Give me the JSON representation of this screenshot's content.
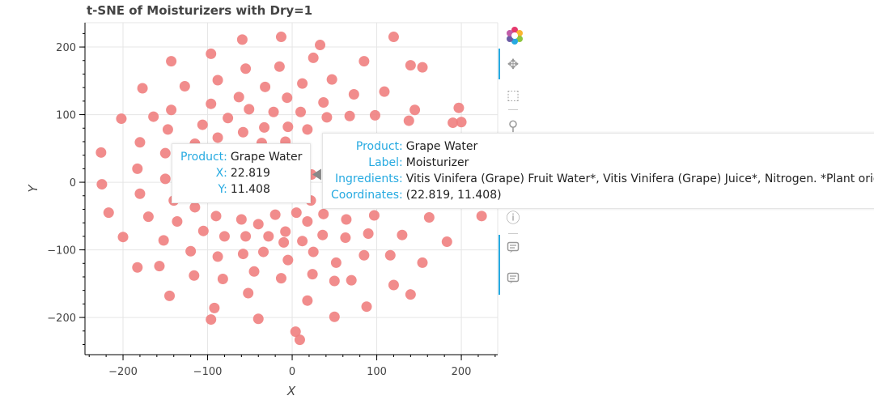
{
  "title": "t-SNE of Moisturizers with Dry=1",
  "chart_data": {
    "type": "scatter",
    "title": "t-SNE of Moisturizers with Dry=1",
    "xlabel": "X",
    "ylabel": "Y",
    "xlim": [
      -245,
      243
    ],
    "ylim": [
      -255,
      236
    ],
    "xticks": [
      -200,
      -100,
      0,
      100,
      200
    ],
    "yticks": [
      -200,
      -100,
      0,
      100,
      200
    ],
    "xtick_labels": [
      "−200",
      "−100",
      "0",
      "100",
      "200"
    ],
    "ytick_labels": [
      "−200",
      "−100",
      "0",
      "100",
      "200"
    ],
    "grid": true,
    "marker_color": "#f08080",
    "points": [
      {
        "x": -59,
        "y": 211
      },
      {
        "x": -13,
        "y": 215
      },
      {
        "x": 33,
        "y": 203
      },
      {
        "x": 120,
        "y": 215
      },
      {
        "x": -143,
        "y": 179
      },
      {
        "x": -96,
        "y": 190
      },
      {
        "x": -55,
        "y": 168
      },
      {
        "x": -15,
        "y": 171
      },
      {
        "x": 25,
        "y": 184
      },
      {
        "x": 85,
        "y": 179
      },
      {
        "x": 140,
        "y": 173
      },
      {
        "x": 154,
        "y": 170
      },
      {
        "x": -177,
        "y": 139
      },
      {
        "x": -127,
        "y": 142
      },
      {
        "x": -88,
        "y": 151
      },
      {
        "x": -32,
        "y": 141
      },
      {
        "x": 12,
        "y": 146
      },
      {
        "x": 47,
        "y": 152
      },
      {
        "x": -63,
        "y": 126
      },
      {
        "x": -6,
        "y": 125
      },
      {
        "x": 37,
        "y": 118
      },
      {
        "x": 73,
        "y": 130
      },
      {
        "x": 109,
        "y": 134
      },
      {
        "x": -202,
        "y": 94
      },
      {
        "x": -164,
        "y": 97
      },
      {
        "x": -143,
        "y": 107
      },
      {
        "x": -96,
        "y": 116
      },
      {
        "x": -76,
        "y": 95
      },
      {
        "x": -51,
        "y": 108
      },
      {
        "x": -22,
        "y": 104
      },
      {
        "x": 10,
        "y": 104
      },
      {
        "x": 41,
        "y": 96
      },
      {
        "x": 68,
        "y": 98
      },
      {
        "x": 98,
        "y": 99
      },
      {
        "x": 138,
        "y": 91
      },
      {
        "x": 145,
        "y": 107
      },
      {
        "x": 190,
        "y": 88
      },
      {
        "x": 197,
        "y": 110
      },
      {
        "x": 200,
        "y": 89
      },
      {
        "x": -147,
        "y": 78
      },
      {
        "x": -106,
        "y": 85
      },
      {
        "x": -58,
        "y": 74
      },
      {
        "x": -33,
        "y": 81
      },
      {
        "x": -5,
        "y": 82
      },
      {
        "x": 18,
        "y": 78
      },
      {
        "x": -226,
        "y": 44
      },
      {
        "x": -180,
        "y": 59
      },
      {
        "x": -150,
        "y": 43
      },
      {
        "x": -115,
        "y": 57
      },
      {
        "x": -88,
        "y": 66
      },
      {
        "x": -62,
        "y": 46
      },
      {
        "x": -36,
        "y": 58
      },
      {
        "x": -8,
        "y": 60
      },
      {
        "x": -225,
        "y": -3
      },
      {
        "x": -183,
        "y": 20
      },
      {
        "x": -150,
        "y": 5
      },
      {
        "x": -107,
        "y": 16
      },
      {
        "x": 22.819,
        "y": 11.408
      },
      {
        "x": -217,
        "y": -45
      },
      {
        "x": -180,
        "y": -17
      },
      {
        "x": -140,
        "y": -27
      },
      {
        "x": -115,
        "y": -37
      },
      {
        "x": -90,
        "y": -50
      },
      {
        "x": -60,
        "y": -55
      },
      {
        "x": -40,
        "y": -62
      },
      {
        "x": -20,
        "y": -48
      },
      {
        "x": 5,
        "y": -45
      },
      {
        "x": 22,
        "y": -27
      },
      {
        "x": -170,
        "y": -51
      },
      {
        "x": -136,
        "y": -58
      },
      {
        "x": -105,
        "y": -72
      },
      {
        "x": -80,
        "y": -80
      },
      {
        "x": -55,
        "y": -80
      },
      {
        "x": -28,
        "y": -80
      },
      {
        "x": -8,
        "y": -73
      },
      {
        "x": 18,
        "y": -58
      },
      {
        "x": 37,
        "y": -47
      },
      {
        "x": 64,
        "y": -55
      },
      {
        "x": 97,
        "y": -49
      },
      {
        "x": 162,
        "y": -52
      },
      {
        "x": 224,
        "y": -50
      },
      {
        "x": -200,
        "y": -81
      },
      {
        "x": -152,
        "y": -86
      },
      {
        "x": -120,
        "y": -102
      },
      {
        "x": -88,
        "y": -110
      },
      {
        "x": -58,
        "y": -106
      },
      {
        "x": -34,
        "y": -103
      },
      {
        "x": -10,
        "y": -89
      },
      {
        "x": 12,
        "y": -87
      },
      {
        "x": 36,
        "y": -78
      },
      {
        "x": 63,
        "y": -82
      },
      {
        "x": 90,
        "y": -76
      },
      {
        "x": 130,
        "y": -78
      },
      {
        "x": 183,
        "y": -88
      },
      {
        "x": -183,
        "y": -126
      },
      {
        "x": -157,
        "y": -124
      },
      {
        "x": -116,
        "y": -138
      },
      {
        "x": -82,
        "y": -143
      },
      {
        "x": -45,
        "y": -132
      },
      {
        "x": -5,
        "y": -115
      },
      {
        "x": 25,
        "y": -103
      },
      {
        "x": 52,
        "y": -119
      },
      {
        "x": 85,
        "y": -108
      },
      {
        "x": 116,
        "y": -108
      },
      {
        "x": 154,
        "y": -119
      },
      {
        "x": -145,
        "y": -168
      },
      {
        "x": -52,
        "y": -164
      },
      {
        "x": -13,
        "y": -142
      },
      {
        "x": 24,
        "y": -136
      },
      {
        "x": 50,
        "y": -146
      },
      {
        "x": 70,
        "y": -145
      },
      {
        "x": 120,
        "y": -152
      },
      {
        "x": 140,
        "y": -166
      },
      {
        "x": -92,
        "y": -186
      },
      {
        "x": 18,
        "y": -175
      },
      {
        "x": 88,
        "y": -184
      },
      {
        "x": -96,
        "y": -203
      },
      {
        "x": -40,
        "y": -202
      },
      {
        "x": 50,
        "y": -199
      },
      {
        "x": 4,
        "y": -221
      },
      {
        "x": 9,
        "y": -233
      }
    ]
  },
  "toolbar": {
    "logo_icon": "bokeh-logo-icon",
    "tools": [
      "pan-icon",
      "box-zoom-icon",
      "wheel-zoom-icon",
      "save-icon",
      "reset-icon",
      "help-icon",
      "hover-icon",
      "hover-icon"
    ]
  },
  "tooltip_small": {
    "rows": [
      {
        "key": "Product:",
        "value": "Grape Water"
      },
      {
        "key": "X:",
        "value": "22.819"
      },
      {
        "key": "Y:",
        "value": "11.408"
      }
    ]
  },
  "tooltip_large": {
    "rows": [
      {
        "key": "Product:",
        "value": "Grape Water"
      },
      {
        "key": "Label:",
        "value": "Moisturizer"
      },
      {
        "key": "Ingredients:",
        "value": "Vitis Vinifera (Grape) Fruit Water*, Vitis Vinifera (Grape) Juice*, Nitrogen. *Plant origin."
      },
      {
        "key": "Coordinates:",
        "value": "(22.819, 11.408)"
      }
    ]
  }
}
